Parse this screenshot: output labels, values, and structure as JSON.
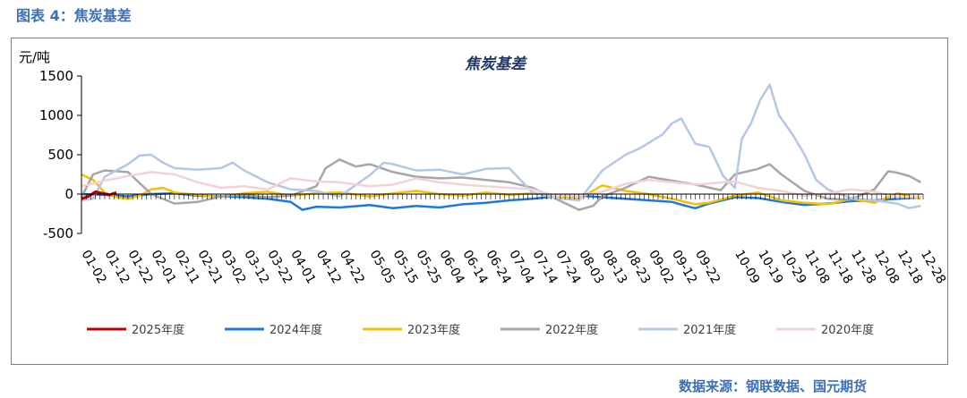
{
  "caption": "图表 4：焦炭基差",
  "source": "数据来源：钢联数据、国元期货",
  "chart_data": {
    "type": "line",
    "title": "焦炭基差",
    "ylabel": "元/吨",
    "ylim": [
      -500,
      1500
    ],
    "yticks": [
      -500,
      0,
      500,
      1000,
      1500
    ],
    "xlim": [
      0,
      362
    ],
    "xtick_labels": [
      "01-02",
      "01-12",
      "01-22",
      "02-01",
      "02-11",
      "02-21",
      "03-02",
      "03-12",
      "03-22",
      "04-01",
      "04-12",
      "04-22",
      "05-05",
      "05-15",
      "05-25",
      "06-04",
      "06-14",
      "06-24",
      "07-04",
      "07-14",
      "07-24",
      "08-03",
      "08-13",
      "08-23",
      "09-02",
      "09-12",
      "09-22",
      "10-09",
      "10-19",
      "10-29",
      "11-08",
      "11-18",
      "11-28",
      "12-08",
      "12-18",
      "12-28"
    ],
    "xtick_days": [
      0,
      10,
      20,
      30,
      40,
      50,
      60,
      70,
      80,
      90,
      101,
      111,
      124,
      134,
      144,
      154,
      164,
      174,
      184,
      194,
      204,
      214,
      224,
      234,
      244,
      254,
      264,
      281,
      291,
      301,
      311,
      321,
      331,
      341,
      351,
      361
    ],
    "legend_position": "bottom",
    "series": [
      {
        "name": "2025年度",
        "color": "#C00000",
        "width": 3,
        "points": [
          [
            0,
            -60
          ],
          [
            3,
            -30
          ],
          [
            6,
            30
          ],
          [
            9,
            10
          ],
          [
            12,
            -10
          ],
          [
            15,
            20
          ]
        ]
      },
      {
        "name": "2024年度",
        "color": "#1F77E0",
        "width": 2.5,
        "points": [
          [
            0,
            0
          ],
          [
            10,
            -10
          ],
          [
            20,
            -30
          ],
          [
            30,
            0
          ],
          [
            40,
            10
          ],
          [
            50,
            -20
          ],
          [
            60,
            -30
          ],
          [
            70,
            -40
          ],
          [
            80,
            -60
          ],
          [
            90,
            -100
          ],
          [
            95,
            -200
          ],
          [
            101,
            -160
          ],
          [
            111,
            -170
          ],
          [
            124,
            -140
          ],
          [
            134,
            -180
          ],
          [
            144,
            -150
          ],
          [
            154,
            -170
          ],
          [
            164,
            -130
          ],
          [
            174,
            -110
          ],
          [
            184,
            -80
          ],
          [
            194,
            -60
          ],
          [
            204,
            -30
          ],
          [
            214,
            -20
          ],
          [
            224,
            -40
          ],
          [
            234,
            -60
          ],
          [
            244,
            -80
          ],
          [
            254,
            -100
          ],
          [
            260,
            -150
          ],
          [
            264,
            -180
          ],
          [
            270,
            -120
          ],
          [
            281,
            -40
          ],
          [
            291,
            -50
          ],
          [
            301,
            -100
          ],
          [
            311,
            -140
          ],
          [
            321,
            -120
          ],
          [
            331,
            -90
          ],
          [
            341,
            -80
          ],
          [
            351,
            -60
          ],
          [
            361,
            -40
          ]
        ]
      },
      {
        "name": "2023年度",
        "color": "#F5C000",
        "width": 2.5,
        "points": [
          [
            0,
            250
          ],
          [
            5,
            180
          ],
          [
            10,
            20
          ],
          [
            15,
            -40
          ],
          [
            20,
            -60
          ],
          [
            25,
            -20
          ],
          [
            30,
            60
          ],
          [
            35,
            80
          ],
          [
            40,
            20
          ],
          [
            50,
            -10
          ],
          [
            60,
            -40
          ],
          [
            70,
            10
          ],
          [
            80,
            30
          ],
          [
            90,
            -20
          ],
          [
            101,
            10
          ],
          [
            111,
            20
          ],
          [
            124,
            -30
          ],
          [
            134,
            10
          ],
          [
            144,
            40
          ],
          [
            154,
            0
          ],
          [
            164,
            -20
          ],
          [
            174,
            20
          ],
          [
            184,
            -10
          ],
          [
            194,
            10
          ],
          [
            204,
            -30
          ],
          [
            214,
            -60
          ],
          [
            224,
            110
          ],
          [
            234,
            40
          ],
          [
            244,
            0
          ],
          [
            254,
            -60
          ],
          [
            264,
            -130
          ],
          [
            270,
            -110
          ],
          [
            281,
            -20
          ],
          [
            291,
            20
          ],
          [
            301,
            -80
          ],
          [
            311,
            -110
          ],
          [
            321,
            -130
          ],
          [
            331,
            -60
          ],
          [
            341,
            -110
          ],
          [
            351,
            10
          ],
          [
            361,
            -60
          ]
        ]
      },
      {
        "name": "2022年度",
        "color": "#A6A6A6",
        "width": 2.5,
        "points": [
          [
            0,
            -40
          ],
          [
            5,
            250
          ],
          [
            10,
            300
          ],
          [
            20,
            280
          ],
          [
            30,
            0
          ],
          [
            40,
            -120
          ],
          [
            50,
            -100
          ],
          [
            60,
            -30
          ],
          [
            70,
            -10
          ],
          [
            80,
            -40
          ],
          [
            90,
            -20
          ],
          [
            101,
            100
          ],
          [
            105,
            330
          ],
          [
            111,
            440
          ],
          [
            118,
            350
          ],
          [
            124,
            380
          ],
          [
            134,
            280
          ],
          [
            144,
            220
          ],
          [
            154,
            200
          ],
          [
            164,
            210
          ],
          [
            174,
            180
          ],
          [
            184,
            150
          ],
          [
            194,
            80
          ],
          [
            204,
            -60
          ],
          [
            214,
            -200
          ],
          [
            220,
            -150
          ],
          [
            224,
            -30
          ],
          [
            234,
            80
          ],
          [
            244,
            220
          ],
          [
            254,
            170
          ],
          [
            264,
            120
          ],
          [
            275,
            50
          ],
          [
            281,
            250
          ],
          [
            291,
            320
          ],
          [
            296,
            380
          ],
          [
            301,
            250
          ],
          [
            311,
            40
          ],
          [
            321,
            -60
          ],
          [
            331,
            -70
          ],
          [
            341,
            60
          ],
          [
            347,
            290
          ],
          [
            351,
            270
          ],
          [
            356,
            230
          ],
          [
            361,
            150
          ]
        ]
      },
      {
        "name": "2021年度",
        "color": "#B4C7E7",
        "width": 2.5,
        "points": [
          [
            0,
            -80
          ],
          [
            5,
            -60
          ],
          [
            10,
            220
          ],
          [
            20,
            380
          ],
          [
            25,
            490
          ],
          [
            30,
            500
          ],
          [
            35,
            400
          ],
          [
            40,
            330
          ],
          [
            50,
            310
          ],
          [
            60,
            330
          ],
          [
            65,
            400
          ],
          [
            70,
            300
          ],
          [
            80,
            150
          ],
          [
            90,
            60
          ],
          [
            101,
            40
          ],
          [
            111,
            -30
          ],
          [
            124,
            240
          ],
          [
            130,
            400
          ],
          [
            134,
            380
          ],
          [
            144,
            300
          ],
          [
            154,
            310
          ],
          [
            164,
            250
          ],
          [
            174,
            320
          ],
          [
            184,
            330
          ],
          [
            194,
            20
          ],
          [
            204,
            -50
          ],
          [
            214,
            -80
          ],
          [
            224,
            300
          ],
          [
            234,
            500
          ],
          [
            240,
            580
          ],
          [
            244,
            650
          ],
          [
            250,
            760
          ],
          [
            254,
            900
          ],
          [
            258,
            960
          ],
          [
            264,
            640
          ],
          [
            270,
            600
          ],
          [
            276,
            230
          ],
          [
            281,
            80
          ],
          [
            284,
            700
          ],
          [
            288,
            900
          ],
          [
            292,
            1200
          ],
          [
            296,
            1390
          ],
          [
            300,
            1000
          ],
          [
            306,
            750
          ],
          [
            311,
            500
          ],
          [
            316,
            180
          ],
          [
            321,
            60
          ],
          [
            326,
            0
          ],
          [
            331,
            -50
          ],
          [
            341,
            -80
          ],
          [
            351,
            -120
          ],
          [
            356,
            -180
          ],
          [
            361,
            -150
          ]
        ]
      },
      {
        "name": "2020年度",
        "color": "#F2D3D3",
        "width": 2.5,
        "points": [
          [
            0,
            100
          ],
          [
            10,
            170
          ],
          [
            20,
            230
          ],
          [
            30,
            280
          ],
          [
            40,
            250
          ],
          [
            50,
            150
          ],
          [
            60,
            80
          ],
          [
            70,
            100
          ],
          [
            80,
            60
          ],
          [
            90,
            200
          ],
          [
            101,
            160
          ],
          [
            111,
            150
          ],
          [
            124,
            100
          ],
          [
            134,
            120
          ],
          [
            144,
            200
          ],
          [
            154,
            150
          ],
          [
            164,
            120
          ],
          [
            174,
            100
          ],
          [
            184,
            80
          ],
          [
            194,
            60
          ],
          [
            204,
            -20
          ],
          [
            214,
            -20
          ],
          [
            224,
            30
          ],
          [
            234,
            130
          ],
          [
            244,
            180
          ],
          [
            254,
            150
          ],
          [
            264,
            120
          ],
          [
            281,
            160
          ],
          [
            291,
            80
          ],
          [
            301,
            40
          ],
          [
            311,
            -20
          ],
          [
            321,
            10
          ],
          [
            331,
            60
          ],
          [
            341,
            30
          ],
          [
            351,
            -40
          ],
          [
            361,
            -30
          ]
        ]
      }
    ]
  }
}
